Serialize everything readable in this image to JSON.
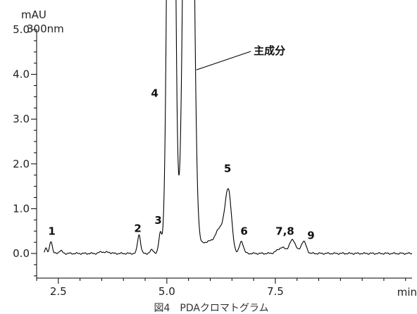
{
  "chart_data": {
    "type": "line",
    "title": "300nm",
    "ylabel": "mAU",
    "xlabel": "min",
    "xlim": [
      2.0,
      10.65
    ],
    "ylim": [
      -0.55,
      5.0
    ],
    "x_ticks": [
      {
        "value": 2.5,
        "label": "2.5"
      },
      {
        "value": 5.0,
        "label": "5.0"
      },
      {
        "value": 7.5,
        "label": "7.5"
      }
    ],
    "y_ticks": [
      {
        "value": 0.0,
        "label": "0.0"
      },
      {
        "value": 1.0,
        "label": "1.0"
      },
      {
        "value": 2.0,
        "label": "2.0"
      },
      {
        "value": 3.0,
        "label": "3.0"
      },
      {
        "value": 4.0,
        "label": "4.0"
      },
      {
        "value": 5.0,
        "label": "5.0"
      }
    ],
    "grid": false,
    "series": [
      {
        "baseline": 0.0,
        "peaks": [
          {
            "x": 2.21,
            "height": 0.12,
            "width": 0.025
          },
          {
            "x": 2.33,
            "height": 0.28,
            "width": 0.03
          },
          {
            "x": 2.55,
            "height": 0.06,
            "width": 0.04
          },
          {
            "x": 3.5,
            "height": 0.04,
            "width": 0.05
          },
          {
            "x": 3.65,
            "height": 0.03,
            "width": 0.05
          },
          {
            "x": 4.36,
            "height": 0.42,
            "width": 0.035
          },
          {
            "x": 4.66,
            "height": 0.08,
            "width": 0.04
          },
          {
            "x": 4.85,
            "height": 0.45,
            "width": 0.035
          },
          {
            "x": 5.1,
            "height": 20.0,
            "width": 0.07
          },
          {
            "x": 5.5,
            "height": 20.0,
            "width": 0.09
          },
          {
            "x": 5.92,
            "height": 0.25,
            "width": 0.16
          },
          {
            "x": 6.25,
            "height": 0.55,
            "width": 0.12
          },
          {
            "x": 6.42,
            "height": 1.25,
            "width": 0.07
          },
          {
            "x": 6.72,
            "height": 0.27,
            "width": 0.045
          },
          {
            "x": 7.65,
            "height": 0.13,
            "width": 0.1
          },
          {
            "x": 7.9,
            "height": 0.3,
            "width": 0.07
          },
          {
            "x": 8.15,
            "height": 0.27,
            "width": 0.06
          }
        ]
      }
    ],
    "peak_labels": [
      {
        "label": "1",
        "x": 2.35,
        "y": 0.42
      },
      {
        "label": "2",
        "x": 4.33,
        "y": 0.48
      },
      {
        "label": "3",
        "x": 4.8,
        "y": 0.66
      },
      {
        "label": "4",
        "x": 4.72,
        "y": 3.5
      },
      {
        "label": "5",
        "x": 6.4,
        "y": 1.82
      },
      {
        "label": "6",
        "x": 6.78,
        "y": 0.42
      },
      {
        "label": "7,8",
        "x": 7.72,
        "y": 0.42
      },
      {
        "label": "9",
        "x": 8.32,
        "y": 0.32
      }
    ],
    "annotation": {
      "text": "主成分",
      "x": 7.0,
      "y": 4.45,
      "arrow_to_x": 5.68,
      "arrow_to_y": 4.1
    },
    "caption": "図4　PDAクロマトグラム"
  }
}
